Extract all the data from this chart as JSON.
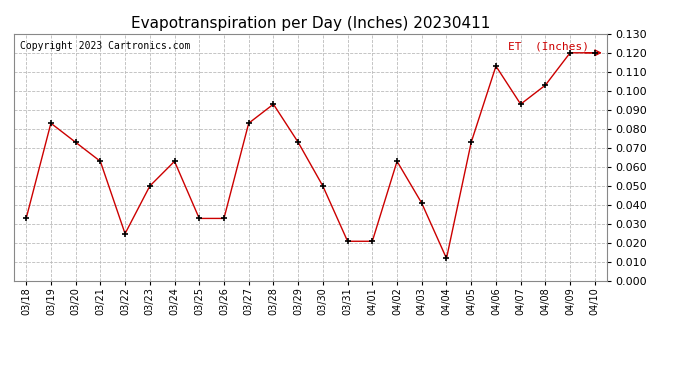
{
  "title": "Evapotranspiration per Day (Inches) 20230411",
  "copyright": "Copyright 2023 Cartronics.com",
  "legend_label": "ET  (Inches)",
  "dates": [
    "03/18",
    "03/19",
    "03/20",
    "03/21",
    "03/22",
    "03/23",
    "03/24",
    "03/25",
    "03/26",
    "03/27",
    "03/28",
    "03/29",
    "03/30",
    "03/31",
    "04/01",
    "04/02",
    "04/03",
    "04/04",
    "04/05",
    "04/06",
    "04/07",
    "04/08",
    "04/09",
    "04/10"
  ],
  "values": [
    0.033,
    0.083,
    0.073,
    0.063,
    0.025,
    0.05,
    0.063,
    0.033,
    0.033,
    0.083,
    0.093,
    0.073,
    0.05,
    0.021,
    0.021,
    0.063,
    0.041,
    0.012,
    0.073,
    0.113,
    0.093,
    0.103,
    0.12,
    0.12
  ],
  "ylim": [
    0.0,
    0.13
  ],
  "ytick_interval": 0.01,
  "line_color": "#cc0000",
  "marker_color": "#000000",
  "grid_color": "#bbbbbb",
  "bg_color": "#ffffff",
  "title_fontsize": 11,
  "copyright_fontsize": 7,
  "legend_fontsize": 8,
  "tick_fontsize": 7,
  "ytick_fontsize": 8
}
